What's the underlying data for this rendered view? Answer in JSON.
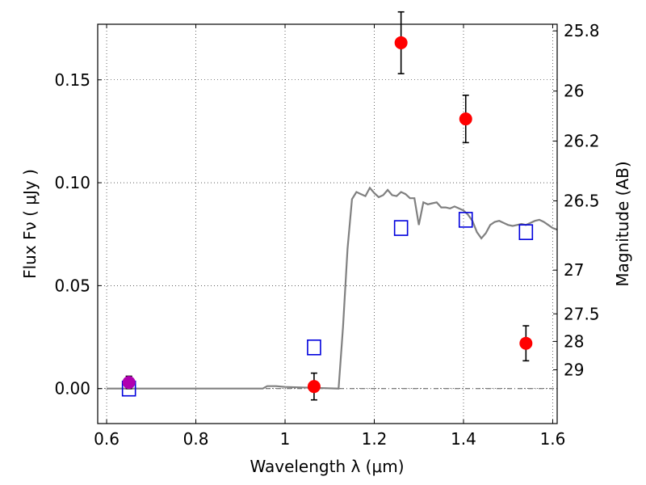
{
  "chart_data": {
    "type": "scatter",
    "xlabel": "Wavelength  λ (μm)",
    "ylabel": "Flux  Fν  ( μJy )",
    "ylabel_right": "Magnitude (AB)",
    "xlim": [
      0.58,
      1.61
    ],
    "ylim": [
      -0.017,
      0.177
    ],
    "x_ticks": [
      {
        "v": 0.6,
        "label": "0.6"
      },
      {
        "v": 0.8,
        "label": "0.8"
      },
      {
        "v": 1.0,
        "label": "1"
      },
      {
        "v": 1.2,
        "label": "1.2"
      },
      {
        "v": 1.4,
        "label": "1.4"
      },
      {
        "v": 1.6,
        "label": "1.6"
      }
    ],
    "y_ticks": [
      {
        "v": 0.0,
        "label": "0.00"
      },
      {
        "v": 0.05,
        "label": "0.05"
      },
      {
        "v": 0.1,
        "label": "0.10"
      },
      {
        "v": 0.15,
        "label": "0.15"
      }
    ],
    "y_right_ticks": [
      {
        "mag": 25.8,
        "label": "25.8"
      },
      {
        "mag": 26,
        "label": "26"
      },
      {
        "mag": 26.2,
        "label": "26.2"
      },
      {
        "mag": 26.5,
        "label": "26.5"
      },
      {
        "mag": 27,
        "label": "27"
      },
      {
        "mag": 27.5,
        "label": "27.5"
      },
      {
        "mag": 28,
        "label": "28"
      },
      {
        "mag": 29,
        "label": "29"
      }
    ],
    "grid": true,
    "zero_line": true,
    "colors": {
      "observed": "#ff0000",
      "observed_alt": "#b000b0",
      "model_boxes": "#0000dd",
      "model_curve": "#808080",
      "errorbar": "#000000"
    },
    "model_curve": {
      "x": [
        0.6,
        0.95,
        0.96,
        0.98,
        1.0,
        1.12,
        1.13,
        1.14,
        1.15,
        1.16,
        1.17,
        1.18,
        1.19,
        1.2,
        1.21,
        1.22,
        1.23,
        1.24,
        1.25,
        1.26,
        1.27,
        1.28,
        1.29,
        1.3,
        1.31,
        1.32,
        1.33,
        1.34,
        1.35,
        1.36,
        1.37,
        1.38,
        1.39,
        1.4,
        1.41,
        1.42,
        1.43,
        1.44,
        1.45,
        1.46,
        1.47,
        1.48,
        1.49,
        1.5,
        1.51,
        1.52,
        1.53,
        1.54,
        1.55,
        1.56,
        1.57,
        1.58,
        1.59,
        1.6,
        1.61
      ],
      "y": [
        0.0,
        0.0,
        0.0012,
        0.0012,
        0.0008,
        0.0,
        0.03,
        0.068,
        0.092,
        0.0955,
        0.0945,
        0.0935,
        0.0975,
        0.095,
        0.093,
        0.094,
        0.0965,
        0.094,
        0.0935,
        0.0955,
        0.0945,
        0.0925,
        0.0925,
        0.0795,
        0.0905,
        0.0895,
        0.09,
        0.0905,
        0.088,
        0.088,
        0.0875,
        0.0885,
        0.0875,
        0.0865,
        0.0845,
        0.0815,
        0.076,
        0.073,
        0.0755,
        0.0795,
        0.081,
        0.0815,
        0.0805,
        0.0795,
        0.079,
        0.0795,
        0.08,
        0.0795,
        0.0805,
        0.0815,
        0.082,
        0.081,
        0.0795,
        0.078,
        0.0772
      ]
    },
    "model_boxes": {
      "x": [
        0.65,
        1.065,
        1.26,
        1.405,
        1.54
      ],
      "y": [
        0.0,
        0.02,
        0.078,
        0.082,
        0.076
      ]
    },
    "observed": [
      {
        "x": 0.65,
        "y": 0.003,
        "err": 0.003,
        "color": "#b000b0"
      },
      {
        "x": 1.065,
        "y": 0.001,
        "err": 0.0065,
        "color": "#ff0000"
      },
      {
        "x": 1.26,
        "y": 0.168,
        "err": 0.015,
        "color": "#ff0000"
      },
      {
        "x": 1.405,
        "y": 0.131,
        "err": 0.0115,
        "color": "#ff0000"
      },
      {
        "x": 1.54,
        "y": 0.022,
        "err": 0.0085,
        "color": "#ff0000"
      }
    ]
  }
}
